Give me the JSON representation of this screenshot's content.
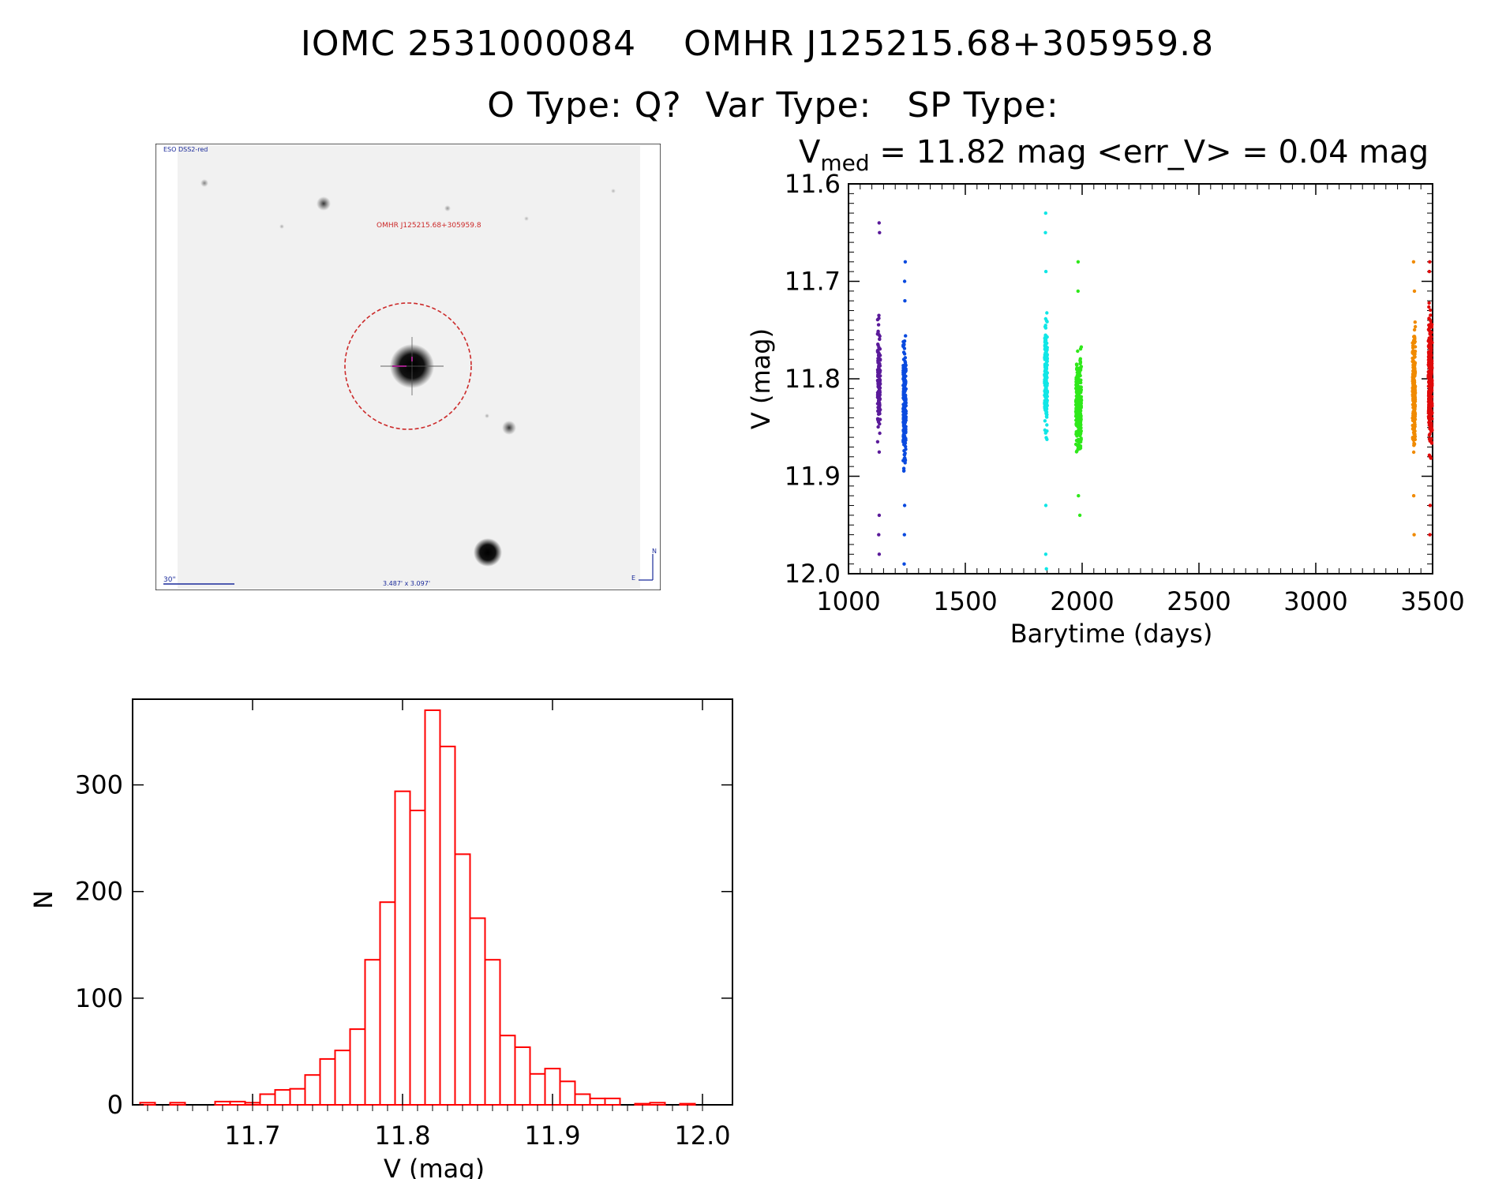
{
  "header": {
    "line1_id": "IOMC 2531000084",
    "line1_name": "OMHR J125215.68+305959.8",
    "line2_otype": "O Type: Q?",
    "line2_vartype": "Var Type:",
    "line2_sptype": "SP Type:"
  },
  "finder_chart": {
    "survey_label": "ESO DSS2-red",
    "object_label": "OMHR J125215.68+305959.8",
    "scale_label": "30\"",
    "size_label": "3.487' x 3.097'",
    "north_label": "N",
    "east_label": "E",
    "colors": {
      "circle": "#cc2a2a",
      "text": "#1a2a9a",
      "object_text": "#cc2a2a"
    }
  },
  "chart_data": [
    {
      "type": "scatter",
      "title_prefix": "V",
      "title_subscript": "med",
      "title_rest": " = 11.82 mag <err_V> = 0.04 mag",
      "xlabel": "Barytime (days)",
      "ylabel": "V (mag)",
      "xlim": [
        1000,
        3500
      ],
      "ylim": [
        12.0,
        11.6
      ],
      "y_inverted": true,
      "x_ticks": [
        "1000",
        "1500",
        "2000",
        "2500",
        "3000",
        "3500"
      ],
      "y_ticks": [
        "11.6",
        "11.7",
        "11.8",
        "11.9",
        "12.0"
      ],
      "series": [
        {
          "color": "#5a1a9a",
          "x_center": 1130,
          "x_spread": 6,
          "count": 130,
          "y_min": 11.72,
          "y_max": 11.88,
          "outliers": [
            11.64,
            11.65,
            11.94,
            11.96,
            11.98
          ]
        },
        {
          "color": "#0a4adf",
          "x_center": 1240,
          "x_spread": 6,
          "count": 230,
          "y_min": 11.74,
          "y_max": 11.91,
          "outliers": [
            11.68,
            11.7,
            11.72,
            11.93,
            11.96,
            11.99
          ]
        },
        {
          "color": "#10e6e6",
          "x_center": 1845,
          "x_spread": 6,
          "count": 170,
          "y_min": 11.72,
          "y_max": 11.88,
          "outliers": [
            11.63,
            11.65,
            11.69,
            11.93,
            11.98,
            11.995
          ]
        },
        {
          "color": "#2fe81a",
          "x_center": 1985,
          "x_spread": 12,
          "count": 260,
          "y_min": 11.76,
          "y_max": 11.9,
          "outliers": [
            11.68,
            11.71,
            11.92,
            11.94
          ]
        },
        {
          "color": "#f08a00",
          "x_center": 3420,
          "x_spread": 6,
          "count": 230,
          "y_min": 11.73,
          "y_max": 11.9,
          "outliers": [
            11.68,
            11.71,
            11.92,
            11.96
          ]
        },
        {
          "color": "#e00a0a",
          "x_center": 3490,
          "x_spread": 8,
          "count": 320,
          "y_min": 11.71,
          "y_max": 11.9,
          "outliers": [
            11.68,
            11.69,
            11.93,
            11.96
          ]
        }
      ]
    },
    {
      "type": "bar",
      "style": "step-histogram",
      "xlabel": "V (mag)",
      "ylabel": "N",
      "xlim": [
        11.62,
        12.02
      ],
      "ylim": [
        0,
        370
      ],
      "x_ticks": [
        "11.7",
        "11.8",
        "11.9",
        "12.0"
      ],
      "y_ticks": [
        "0",
        "100",
        "200",
        "300"
      ],
      "color": "#ff0000",
      "bin_width": 0.01,
      "bin_start": 11.625,
      "counts": [
        2,
        0,
        2,
        0,
        0,
        3,
        3,
        2,
        10,
        14,
        15,
        28,
        43,
        51,
        71,
        136,
        190,
        294,
        276,
        370,
        336,
        235,
        175,
        136,
        65,
        54,
        29,
        34,
        22,
        10,
        6,
        6,
        0,
        1,
        2,
        0,
        1
      ]
    }
  ]
}
